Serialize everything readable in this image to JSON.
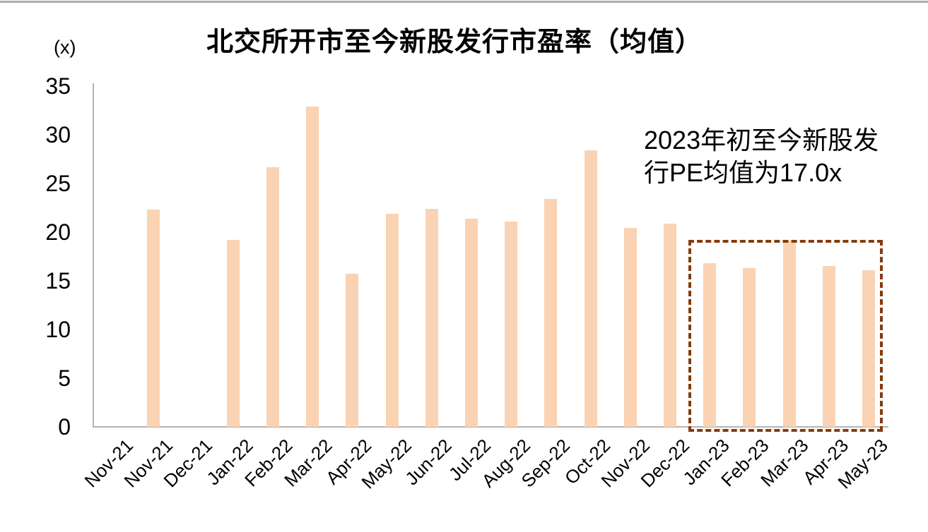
{
  "chart_data": {
    "type": "bar",
    "title": "北交所开市至今新股发行市盈率（均值）",
    "unit_label": "(x)",
    "xlabel": "",
    "ylabel": "",
    "ylim": [
      0,
      35
    ],
    "y_ticks": [
      0,
      5,
      10,
      15,
      20,
      25,
      30,
      35
    ],
    "grid": false,
    "legend": "none",
    "bar_color": "#fad3b4",
    "axis_color": "#b4b4b4",
    "categories": [
      "Nov-21",
      "Nov-21",
      "Dec-21",
      "Jan-22",
      "Feb-22",
      "Mar-22",
      "Apr-22",
      "May-22",
      "Jun-22",
      "Jul-22",
      "Aug-22",
      "Sep-22",
      "Oct-22",
      "Nov-22",
      "Dec-22",
      "Jan-23",
      "Feb-23",
      "Mar-23",
      "Apr-23",
      "May-23"
    ],
    "values": [
      null,
      22.3,
      null,
      19.2,
      26.7,
      32.9,
      15.7,
      21.9,
      22.4,
      21.4,
      21.1,
      23.4,
      28.4,
      20.4,
      20.9,
      16.8,
      16.3,
      19.1,
      16.5,
      16.1
    ],
    "highlight": {
      "region_categories": [
        "Jan-23",
        "Feb-23",
        "Mar-23",
        "Apr-23",
        "May-23"
      ],
      "region_indices": [
        15,
        16,
        17,
        18,
        19
      ],
      "box_style": "dashed",
      "box_color": "#843c0c"
    },
    "annotation": {
      "lines": [
        "2023年初至今新股发",
        "行PE均值为17.0x"
      ]
    }
  }
}
